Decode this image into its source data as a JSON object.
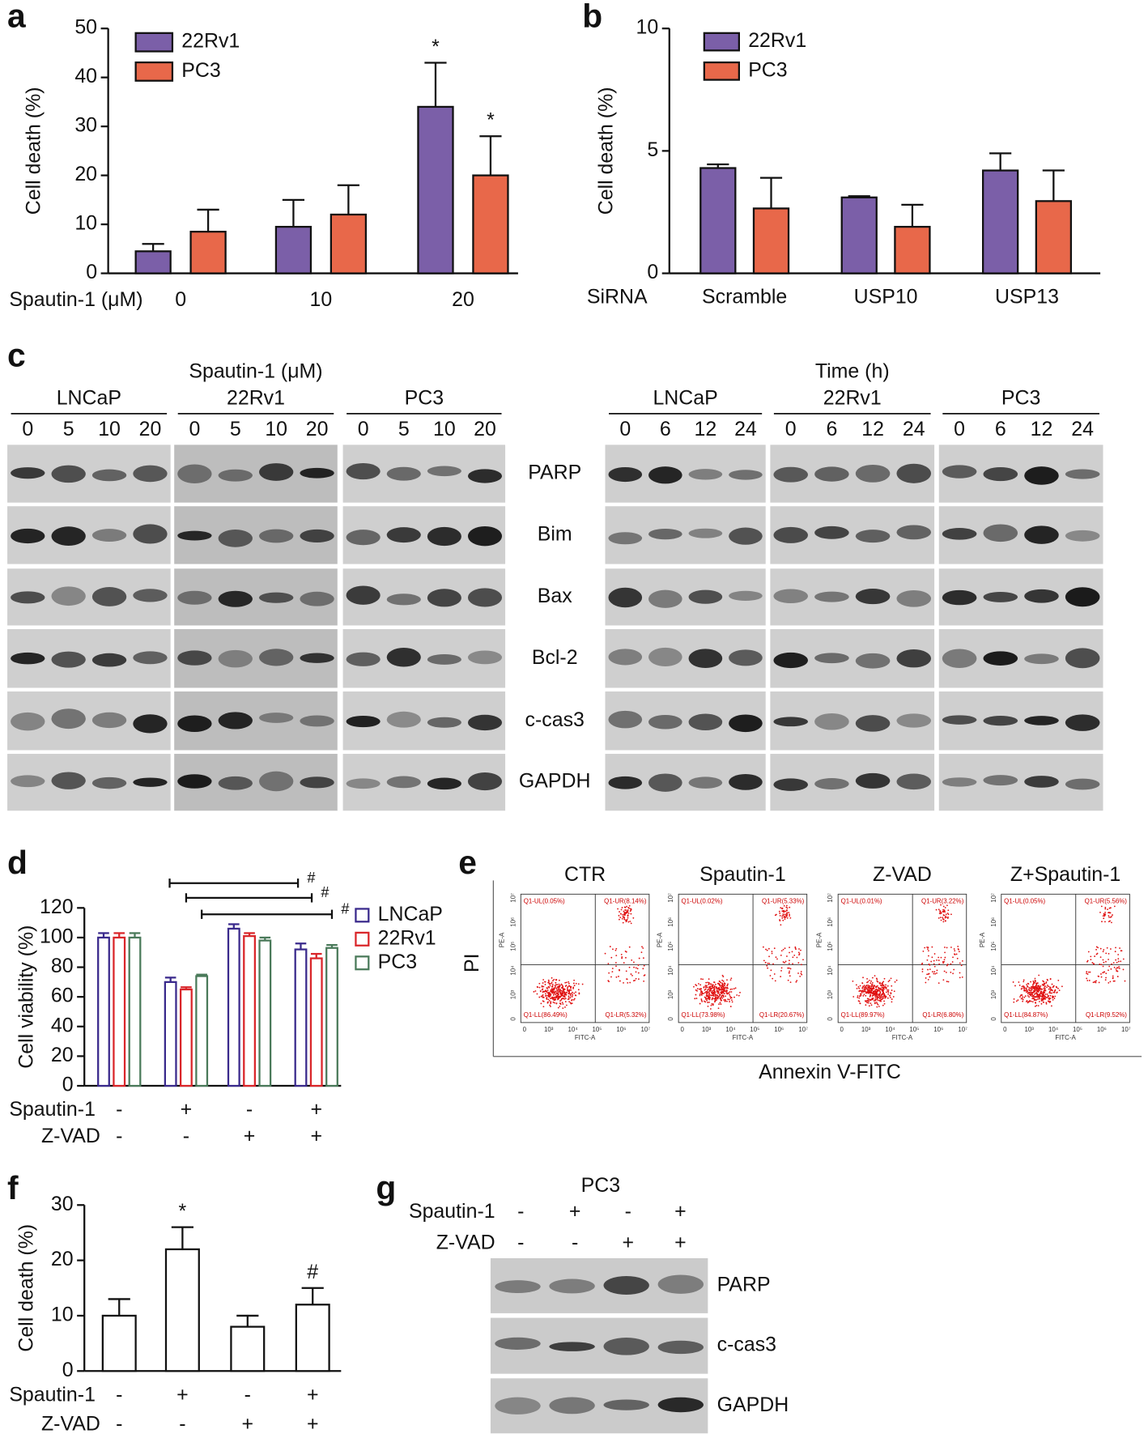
{
  "chart_data": [
    {
      "panel": "a",
      "type": "bar",
      "y_label": "Cell death (%)",
      "x_label": "Spautin-1 (μM)",
      "categories": [
        "0",
        "10",
        "20"
      ],
      "series": [
        {
          "name": "22Rv1",
          "color": "#7b5fa8",
          "values": [
            4.5,
            9.5,
            34
          ],
          "errors": [
            1.5,
            5.5,
            9
          ],
          "annotations": [
            null,
            null,
            "*"
          ]
        },
        {
          "name": "PC3",
          "color": "#e8684a",
          "values": [
            8.5,
            12,
            20
          ],
          "errors": [
            4.5,
            6,
            8
          ],
          "annotations": [
            null,
            null,
            "*"
          ]
        }
      ],
      "ylim": [
        0,
        50
      ],
      "yticks": [
        0,
        10,
        20,
        30,
        40,
        50
      ],
      "legend": "upper left"
    },
    {
      "panel": "b",
      "type": "bar",
      "y_label": "Cell death (%)",
      "x_label": "SiRNA",
      "categories": [
        "Scramble",
        "USP10",
        "USP13"
      ],
      "series": [
        {
          "name": "22Rv1",
          "color": "#7b5fa8",
          "values": [
            4.3,
            3.1,
            4.2
          ],
          "errors": [
            0.15,
            0.05,
            0.7
          ]
        },
        {
          "name": "PC3",
          "color": "#e8684a",
          "values": [
            2.65,
            1.9,
            2.95
          ],
          "errors": [
            1.25,
            0.9,
            1.25
          ]
        }
      ],
      "ylim": [
        0,
        10
      ],
      "yticks": [
        0,
        5,
        10
      ],
      "legend": "upper left"
    },
    {
      "panel": "d",
      "type": "bar",
      "hollow": true,
      "y_label": "Cell viability (%)",
      "conditions": [
        {
          "name": "Spautin-1",
          "signs": [
            "-",
            "+",
            "-",
            "+"
          ]
        },
        {
          "name": "Z-VAD",
          "signs": [
            "-",
            "-",
            "+",
            "+"
          ]
        }
      ],
      "series": [
        {
          "name": "LNCaP",
          "color": "#3a2a8c",
          "values": [
            100,
            70,
            106,
            92
          ],
          "errors": [
            3,
            3,
            3,
            4
          ]
        },
        {
          "name": "22Rv1",
          "color": "#d9262a",
          "values": [
            100,
            65,
            101,
            86
          ],
          "errors": [
            3,
            1.5,
            2,
            3
          ]
        },
        {
          "name": "PC3",
          "color": "#4a7a5a",
          "values": [
            100,
            74,
            98,
            93
          ],
          "errors": [
            3,
            1,
            2,
            2
          ]
        }
      ],
      "ylim": [
        0,
        120
      ],
      "yticks": [
        0,
        20,
        40,
        60,
        80,
        100,
        120
      ],
      "legend": "right",
      "brackets": [
        "#",
        "#",
        "#"
      ]
    },
    {
      "panel": "f",
      "type": "bar",
      "hollow": true,
      "y_label": "Cell death (%)",
      "conditions": [
        {
          "name": "Spautin-1",
          "signs": [
            "-",
            "+",
            "-",
            "+"
          ]
        },
        {
          "name": "Z-VAD",
          "signs": [
            "-",
            "-",
            "+",
            "+"
          ]
        }
      ],
      "color": "#111111",
      "values": [
        10,
        22,
        8,
        12
      ],
      "errors": [
        3,
        4,
        2,
        3
      ],
      "annotations": [
        null,
        "*",
        null,
        "#"
      ],
      "ylim": [
        0,
        30
      ],
      "yticks": [
        0,
        10,
        20,
        30
      ]
    }
  ],
  "panel_c": {
    "label": "c",
    "groups": [
      {
        "title": "Spautin-1 (μM)",
        "cells": [
          "LNCaP",
          "22Rv1",
          "PC3"
        ],
        "lanes": [
          "0",
          "5",
          "10",
          "20"
        ]
      },
      {
        "title": "Time (h)",
        "cells": [
          "LNCaP",
          "22Rv1",
          "PC3"
        ],
        "lanes": [
          "0",
          "6",
          "12",
          "24"
        ]
      }
    ],
    "proteins": [
      "PARP",
      "Bim",
      "Bax",
      "Bcl-2",
      "c-cas3",
      "GAPDH"
    ]
  },
  "panel_e": {
    "label": "e",
    "y_label": "PI",
    "x_label": "Annexin V-FITC",
    "plot_x_label": "FITC-A",
    "plot_y_label": "PE-A",
    "axis_ticks": [
      "0",
      "10³",
      "10⁴",
      "10⁵",
      "10⁶",
      "10⁷"
    ],
    "plots": [
      {
        "title": "CTR",
        "UL": "Q1-UL(0.05%)",
        "UR": "Q1-UR(8.14%)",
        "LL": "Q1-LL(86.49%)",
        "LR": "Q1-LR(5.32%)"
      },
      {
        "title": "Spautin-1",
        "UL": "Q1-UL(0.02%)",
        "UR": "Q1-UR(5.33%)",
        "LL": "Q1-LL(73.98%)",
        "LR": "Q1-LR(20.67%)"
      },
      {
        "title": "Z-VAD",
        "UL": "Q1-UL(0.01%)",
        "UR": "Q1-UR(3.22%)",
        "LL": "Q1-LL(89.97%)",
        "LR": "Q1-LR(6.80%)"
      },
      {
        "title": "Z+Spautin-1",
        "UL": "Q1-UL(0.05%)",
        "UR": "Q1-UR(5.56%)",
        "LL": "Q1-LL(84.87%)",
        "LR": "Q1-LR(9.52%)"
      }
    ]
  },
  "panel_g": {
    "label": "g",
    "title": "PC3",
    "conditions": [
      {
        "name": "Spautin-1",
        "signs": [
          "-",
          "+",
          "-",
          "+"
        ]
      },
      {
        "name": "Z-VAD",
        "signs": [
          "-",
          "-",
          "+",
          "+"
        ]
      }
    ],
    "proteins": [
      "PARP",
      "c-cas3",
      "GAPDH"
    ]
  }
}
